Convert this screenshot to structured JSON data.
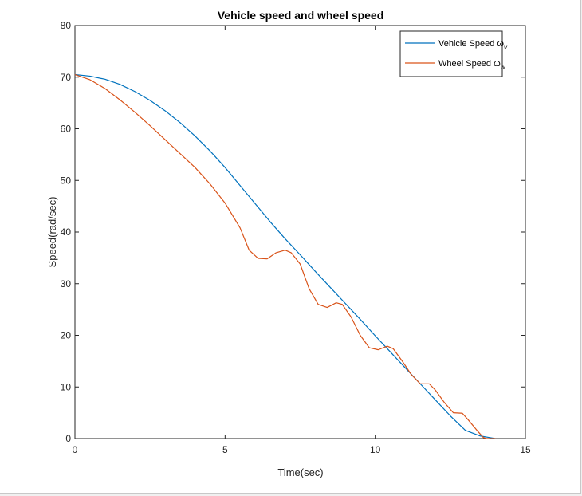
{
  "chart_data": {
    "type": "line",
    "title": "Vehicle speed and wheel speed",
    "xlabel": "Time(sec)",
    "ylabel": "Speed(rad/sec)",
    "xlim": [
      0,
      15
    ],
    "ylim": [
      0,
      80
    ],
    "xticks": [
      0,
      5,
      10,
      15
    ],
    "yticks": [
      0,
      10,
      20,
      30,
      40,
      50,
      60,
      70,
      80
    ],
    "grid": false,
    "legend_position": "top-right",
    "series": [
      {
        "name": "Vehicle Speed ω",
        "subscript": "v",
        "color": "#0072BD",
        "x": [
          0,
          0.5,
          1,
          1.5,
          2,
          2.5,
          3,
          3.5,
          4,
          4.5,
          5,
          5.5,
          6,
          6.5,
          7,
          7.5,
          8,
          8.5,
          9,
          9.5,
          10,
          10.5,
          11,
          11.5,
          12,
          12.5,
          13,
          13.5,
          13.8,
          14.0
        ],
        "y": [
          70.5,
          70.2,
          69.6,
          68.6,
          67.2,
          65.5,
          63.5,
          61.2,
          58.6,
          55.7,
          52.5,
          49.0,
          45.5,
          42.0,
          38.7,
          35.6,
          32.4,
          29.3,
          26.2,
          23.1,
          19.9,
          16.8,
          13.7,
          10.6,
          7.5,
          4.4,
          1.6,
          0.5,
          0.2,
          0.0
        ]
      },
      {
        "name": "Wheel Speed ω",
        "subscript": "w",
        "color": "#D95319",
        "x": [
          0,
          0.5,
          1,
          1.5,
          2,
          2.5,
          3,
          3.5,
          4,
          4.5,
          5,
          5.5,
          5.8,
          6.1,
          6.4,
          6.7,
          7.0,
          7.2,
          7.5,
          7.8,
          8.1,
          8.4,
          8.7,
          8.9,
          9.2,
          9.5,
          9.8,
          10.1,
          10.4,
          10.6,
          10.9,
          11.2,
          11.5,
          11.8,
          12.0,
          12.3,
          12.6,
          12.9,
          13.1,
          13.4,
          13.6,
          13.7,
          13.8,
          14.0
        ],
        "y": [
          70.5,
          69.5,
          67.8,
          65.6,
          63.2,
          60.6,
          57.9,
          55.2,
          52.5,
          49.3,
          45.6,
          40.8,
          36.5,
          34.9,
          34.8,
          36.0,
          36.5,
          36.0,
          33.8,
          29.0,
          26.0,
          25.4,
          26.3,
          26.0,
          23.5,
          20.0,
          17.6,
          17.2,
          17.9,
          17.4,
          15.0,
          12.4,
          10.6,
          10.6,
          9.4,
          7.0,
          5.0,
          4.9,
          3.6,
          1.5,
          0.2,
          0.0,
          0.0,
          0.0
        ]
      }
    ]
  }
}
